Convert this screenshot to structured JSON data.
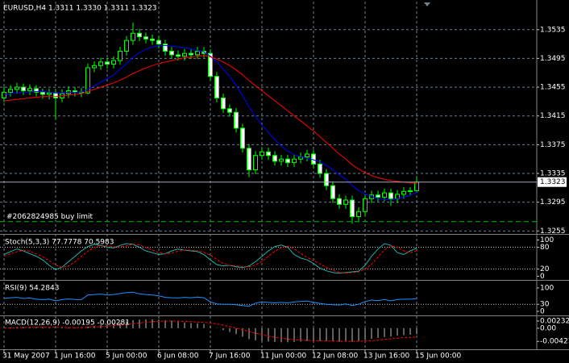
{
  "chart_data": [
    {
      "type": "candlestick",
      "title": "EURUSD,H4  1.3311 1.3330 1.3311 1.3323",
      "categories": [
        "31 May 2007",
        null,
        null,
        null,
        null,
        null,
        null,
        null,
        "1 Jun 16:00",
        null,
        null,
        null,
        null,
        null,
        null,
        null,
        "5 Jun 00:00",
        null,
        null,
        null,
        null,
        null,
        null,
        null,
        "6 Jun 08:00",
        null,
        null,
        null,
        null,
        null,
        null,
        null,
        "7 Jun 16:00",
        null,
        null,
        null,
        null,
        null,
        null,
        null,
        "11 Jun 00:00",
        null,
        null,
        null,
        null,
        null,
        null,
        null,
        "12 Jun 08:00",
        null,
        null,
        null,
        null,
        null,
        null,
        null,
        "13 Jun 16:00",
        null,
        null,
        null,
        null,
        null,
        null,
        null,
        "15 Jun 00:00"
      ],
      "open": [
        1.344,
        1.3448,
        1.3452,
        1.3455,
        1.345,
        1.3453,
        1.3448,
        1.3445,
        1.3447,
        1.344,
        1.3446,
        1.345,
        1.3448,
        1.3447,
        1.3482,
        1.3485,
        1.349,
        1.3487,
        1.3492,
        1.3505,
        1.352,
        1.353,
        1.3525,
        1.3522,
        1.352,
        1.3515,
        1.3505,
        1.35,
        1.3498,
        1.3502,
        1.35,
        1.3505,
        1.3502,
        1.347,
        1.344,
        1.3425,
        1.342,
        1.3398,
        1.337,
        1.334,
        1.336,
        1.3365,
        1.336,
        1.3352,
        1.3355,
        1.335,
        1.3355,
        1.3358,
        1.3362,
        1.3348,
        1.3335,
        1.3318,
        1.33,
        1.3292,
        1.3298,
        1.3275,
        1.3282,
        1.33,
        1.3305,
        1.3302,
        1.3308,
        1.33,
        1.3306,
        1.331,
        1.3311
      ],
      "high": [
        1.3456,
        1.3458,
        1.3461,
        1.346,
        1.3459,
        1.3458,
        1.3453,
        1.3453,
        1.3452,
        1.3452,
        1.3456,
        1.3455,
        1.3454,
        1.3488,
        1.3491,
        1.3496,
        1.3496,
        1.3498,
        1.3511,
        1.3526,
        1.3545,
        1.3536,
        1.3531,
        1.3528,
        1.3526,
        1.3521,
        1.3511,
        1.3506,
        1.3508,
        1.3508,
        1.3511,
        1.3511,
        1.3508,
        1.3476,
        1.3446,
        1.3431,
        1.3426,
        1.3404,
        1.3376,
        1.3366,
        1.3371,
        1.3371,
        1.3366,
        1.3361,
        1.3361,
        1.3361,
        1.3364,
        1.3368,
        1.3368,
        1.3354,
        1.3341,
        1.3324,
        1.3306,
        1.3304,
        1.3304,
        1.3288,
        1.3306,
        1.3311,
        1.3311,
        1.3314,
        1.3314,
        1.3312,
        1.3316,
        1.3316,
        1.333
      ],
      "low": [
        1.3434,
        1.3442,
        1.3446,
        1.3444,
        1.3444,
        1.3442,
        1.3439,
        1.3438,
        1.341,
        1.3434,
        1.344,
        1.3442,
        1.3441,
        1.3445,
        1.3476,
        1.3479,
        1.3481,
        1.3481,
        1.3486,
        1.3499,
        1.3514,
        1.3519,
        1.3516,
        1.3514,
        1.3509,
        1.3499,
        1.3494,
        1.3492,
        1.3492,
        1.3494,
        1.3494,
        1.3496,
        1.3464,
        1.3434,
        1.3419,
        1.3414,
        1.3392,
        1.3364,
        1.333,
        1.3334,
        1.3354,
        1.3354,
        1.3346,
        1.3346,
        1.3344,
        1.3344,
        1.3349,
        1.3352,
        1.3342,
        1.3329,
        1.3312,
        1.3294,
        1.3286,
        1.3286,
        1.3265,
        1.3269,
        1.3276,
        1.3294,
        1.3296,
        1.3296,
        1.329,
        1.3294,
        1.33,
        1.3304,
        1.3311
      ],
      "close": [
        1.3448,
        1.3452,
        1.3455,
        1.345,
        1.3453,
        1.3448,
        1.3445,
        1.3447,
        1.344,
        1.3446,
        1.345,
        1.3448,
        1.3447,
        1.3482,
        1.3485,
        1.349,
        1.3487,
        1.3492,
        1.3505,
        1.352,
        1.353,
        1.3525,
        1.3522,
        1.352,
        1.3515,
        1.3505,
        1.35,
        1.3498,
        1.3502,
        1.35,
        1.3505,
        1.3502,
        1.347,
        1.344,
        1.3425,
        1.342,
        1.3398,
        1.337,
        1.334,
        1.336,
        1.3365,
        1.336,
        1.3352,
        1.3355,
        1.335,
        1.3355,
        1.3358,
        1.3362,
        1.3348,
        1.3335,
        1.3318,
        1.33,
        1.3292,
        1.3298,
        1.3275,
        1.3282,
        1.33,
        1.3305,
        1.3302,
        1.3308,
        1.33,
        1.3306,
        1.331,
        1.3311,
        1.3323
      ],
      "series": [
        {
          "color": "#0000ff",
          "values": [
            1.3445,
            1.3446,
            1.3447,
            1.3448,
            1.3448,
            1.3449,
            1.3449,
            1.3448,
            1.3447,
            1.3447,
            1.3448,
            1.3448,
            1.3448,
            1.3452,
            1.3457,
            1.3462,
            1.3467,
            1.3472,
            1.348,
            1.3488,
            1.3497,
            1.3503,
            1.3508,
            1.3511,
            1.3513,
            1.3513,
            1.3512,
            1.3511,
            1.351,
            1.3508,
            1.3506,
            1.3504,
            1.3498,
            1.349,
            1.348,
            1.347,
            1.3457,
            1.3443,
            1.3427,
            1.3414,
            1.3402,
            1.3392,
            1.3382,
            1.3373,
            1.3366,
            1.3361,
            1.3358,
            1.3356,
            1.3354,
            1.3351,
            1.3346,
            1.334,
            1.3333,
            1.3327,
            1.3318,
            1.3311,
            1.3306,
            1.3303,
            1.33,
            1.3299,
            1.3298,
            1.33,
            1.3302,
            1.3305,
            1.3309
          ]
        },
        {
          "color": "#ff0000",
          "values": [
            1.3436,
            1.3437,
            1.3438,
            1.3439,
            1.344,
            1.3441,
            1.3442,
            1.3442,
            1.3442,
            1.3443,
            1.3444,
            1.3445,
            1.3446,
            1.3449,
            1.3452,
            1.3455,
            1.3458,
            1.3461,
            1.3465,
            1.3469,
            1.3474,
            1.3478,
            1.3482,
            1.3485,
            1.3488,
            1.349,
            1.3492,
            1.3494,
            1.3496,
            1.3497,
            1.3498,
            1.3499,
            1.3497,
            1.3494,
            1.349,
            1.3485,
            1.3479,
            1.3472,
            1.3464,
            1.3457,
            1.345,
            1.3443,
            1.3436,
            1.3429,
            1.3422,
            1.3415,
            1.3408,
            1.3401,
            1.3394,
            1.3386,
            1.3378,
            1.337,
            1.3362,
            1.3355,
            1.3347,
            1.3341,
            1.3336,
            1.3332,
            1.3329,
            1.3327,
            1.3325,
            1.3324,
            1.3323,
            1.3322,
            1.3321
          ]
        }
      ],
      "last_price": 1.3323,
      "order_label": "#2062824985 buy limit",
      "order_price": 1.3268,
      "ylim": [
        1.3252,
        1.3574
      ],
      "yticks": [
        1.3535,
        1.3495,
        1.3455,
        1.3415,
        1.3375,
        1.3335,
        1.3295,
        1.3255
      ],
      "grid": true,
      "up_color": "#00ff00",
      "bull_fill": "#000000",
      "bear_fill": "#ffffff"
    },
    {
      "type": "line",
      "title": "Stoch(5,3,3) 77.7778 70.5983",
      "series": [
        {
          "color": "#20b2aa",
          "values": [
            60,
            68,
            75,
            70,
            62,
            55,
            45,
            30,
            18,
            25,
            40,
            55,
            70,
            82,
            88,
            85,
            80,
            78,
            85,
            90,
            88,
            80,
            70,
            65,
            60,
            62,
            70,
            75,
            72,
            70,
            68,
            60,
            45,
            32,
            28,
            30,
            26,
            24,
            28,
            40,
            55,
            70,
            82,
            86,
            80,
            60,
            50,
            45,
            35,
            22,
            15,
            10,
            8,
            10,
            12,
            14,
            30,
            55,
            75,
            90,
            85,
            65,
            60,
            70,
            77.7778
          ]
        },
        {
          "color": "#ff0000",
          "dashed": true,
          "values": [
            55,
            62,
            68,
            71,
            69,
            62,
            54,
            43,
            31,
            24,
            28,
            40,
            55,
            69,
            80,
            85,
            84,
            81,
            81,
            84,
            88,
            86,
            79,
            72,
            65,
            62,
            64,
            69,
            72,
            72,
            70,
            66,
            58,
            46,
            35,
            30,
            28,
            27,
            26,
            31,
            41,
            55,
            69,
            79,
            83,
            75,
            63,
            52,
            43,
            34,
            24,
            16,
            11,
            9,
            10,
            12,
            19,
            33,
            53,
            73,
            83,
            80,
            70,
            65,
            70.5983
          ]
        }
      ],
      "levels": [
        20,
        80
      ],
      "ylim": [
        -8,
        110
      ],
      "yticks": [
        100,
        80,
        20,
        0
      ]
    },
    {
      "type": "line",
      "title": "RSI(9) 54.2843",
      "series": [
        {
          "color": "#1e90ff",
          "values": [
            55,
            58,
            60,
            55,
            57,
            52,
            50,
            52,
            45,
            50,
            53,
            51,
            50,
            70,
            72,
            74,
            70,
            72,
            76,
            80,
            82,
            75,
            72,
            70,
            66,
            60,
            58,
            57,
            60,
            58,
            61,
            58,
            40,
            32,
            30,
            30,
            28,
            25,
            22,
            35,
            40,
            38,
            36,
            38,
            36,
            40,
            42,
            44,
            38,
            34,
            30,
            28,
            27,
            32,
            25,
            30,
            42,
            48,
            46,
            50,
            45,
            50,
            52,
            52,
            54.2843
          ]
        }
      ],
      "levels": [
        30
      ],
      "ylim": [
        -14,
        124
      ],
      "yticks": [
        100,
        30,
        0
      ]
    },
    {
      "type": "macd",
      "title": "MACD(12,26,9) -0.00195 -0.00281",
      "histogram": {
        "color": "#c0c0c0",
        "values": [
          0.0002,
          0.0003,
          0.0004,
          0.0004,
          0.0004,
          0.0004,
          0.0003,
          0.0003,
          0.0002,
          0.0002,
          0.0002,
          0.0002,
          0.0002,
          0.0005,
          0.0008,
          0.0011,
          0.0013,
          0.0015,
          0.0018,
          0.0022,
          0.0026,
          0.0028,
          0.0029,
          0.0029,
          0.0028,
          0.0026,
          0.0024,
          0.0021,
          0.0019,
          0.0017,
          0.0016,
          0.0014,
          0.0008,
          0.0001,
          -0.0006,
          -0.0012,
          -0.0019,
          -0.0027,
          -0.0035,
          -0.0039,
          -0.0041,
          -0.0043,
          -0.0044,
          -0.0045,
          -0.0045,
          -0.0044,
          -0.0043,
          -0.0041,
          -0.0041,
          -0.0041,
          -0.0042,
          -0.0043,
          -0.0043,
          -0.0042,
          -0.0043,
          -0.0042,
          -0.0038,
          -0.0034,
          -0.0031,
          -0.0028,
          -0.0026,
          -0.0024,
          -0.0022,
          -0.0021,
          -0.00195
        ]
      },
      "series": [
        {
          "color": "#ff0000",
          "dashed": true,
          "values": [
            0.0001,
            0.0001,
            0.0002,
            0.0002,
            0.0003,
            0.0003,
            0.0003,
            0.0003,
            0.0003,
            0.0003,
            0.0002,
            0.0002,
            0.0002,
            0.0003,
            0.0004,
            0.0005,
            0.0007,
            0.0008,
            0.001,
            0.0012,
            0.0015,
            0.0017,
            0.0019,
            0.0021,
            0.0022,
            0.0023,
            0.0023,
            0.0023,
            0.0022,
            0.0021,
            0.002,
            0.0019,
            0.0017,
            0.0014,
            0.001,
            0.0005,
            0.0001,
            -0.0005,
            -0.0011,
            -0.0016,
            -0.0021,
            -0.0025,
            -0.0029,
            -0.0032,
            -0.0035,
            -0.0037,
            -0.0038,
            -0.0039,
            -0.004,
            -0.004,
            -0.0041,
            -0.0041,
            -0.0042,
            -0.0042,
            -0.0042,
            -0.0042,
            -0.0041,
            -0.004,
            -0.0038,
            -0.0036,
            -0.0034,
            -0.0032,
            -0.003,
            -0.0029,
            -0.00281
          ]
        }
      ],
      "ylim": [
        -0.0065,
        0.0036
      ],
      "yticks": [
        0.00232,
        {
          "value": 0,
          "label": "0.00"
        },
        -0.00423
      ]
    }
  ]
}
